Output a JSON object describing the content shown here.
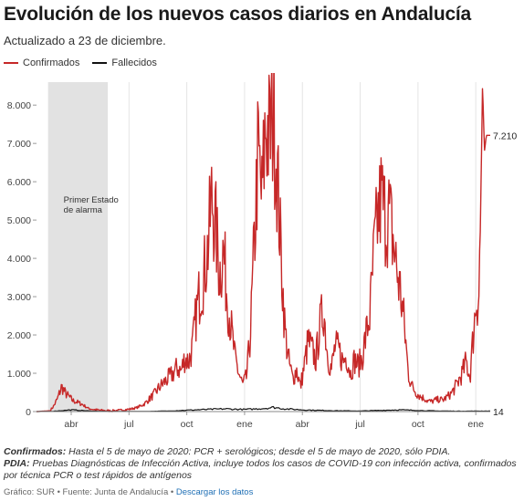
{
  "header": {
    "title": "Evolución de los nuevos casos diarios en Andalucía",
    "subtitle": "Actualizado a 23 de diciembre."
  },
  "notes": {
    "confirmed_label": "Confirmados:",
    "confirmed_text": "Hasta el 5 de mayo de 2020: PCR + serológicos; desde el 5 de mayo de 2020, sólo PDIA.",
    "pdia_label": "PDIA:",
    "pdia_text": "Pruebas Diagnósticas de Infección Activa, incluye todos los casos de COVID-19 con infección activa, confirmados por técnica PCR o test rápidos de antígenos"
  },
  "footer": {
    "credit": "Gráfico: SUR • Fuente: Junta de Andalucía •",
    "download_link": "Descargar los datos"
  },
  "chart_data": {
    "type": "line",
    "title": "Evolución de los nuevos casos diarios en Andalucía",
    "x_axis": {
      "ticks": [
        "abr",
        "jul",
        "oct",
        "ene",
        "abr",
        "jul",
        "oct",
        "ene"
      ],
      "tick_months": [
        2,
        5,
        8,
        11,
        14,
        17,
        20,
        23
      ],
      "range_months": [
        0.2,
        23.75
      ]
    },
    "y_axis": {
      "ticks": [
        "0",
        "1.000",
        "2.000",
        "3.000",
        "4.000",
        "5.000",
        "6.000",
        "7.000",
        "8.000"
      ],
      "tick_values": [
        0,
        1000,
        2000,
        3000,
        4000,
        5000,
        6000,
        7000,
        8000
      ],
      "range": [
        0,
        8600
      ]
    },
    "grid": "vertical",
    "legend_position": "top-left",
    "colors": {
      "confirmados": "#c62828",
      "fallecidos": "#111111",
      "shade": "#e2e2e2"
    },
    "annotation": {
      "text_line1": "Primer Estado",
      "text_line2": "de alarma",
      "x_start_month": 0.8,
      "x_end_month": 3.9
    },
    "last_values": {
      "confirmados": "7.210",
      "fallecidos": "14"
    },
    "series": [
      {
        "name": "Confirmados",
        "color": "#c62828",
        "x_months": [
          0.2,
          0.9,
          1.1,
          1.3,
          1.5,
          1.7,
          1.9,
          2.1,
          2.3,
          2.6,
          2.9,
          3.2,
          3.6,
          4.0,
          4.5,
          5.0,
          5.4,
          5.8,
          6.0,
          6.3,
          6.6,
          6.9,
          7.1,
          7.3,
          7.5,
          7.7,
          7.9,
          8.1,
          8.3,
          8.5,
          8.7,
          8.9,
          9.1,
          9.3,
          9.5,
          9.7,
          9.9,
          10.1,
          10.3,
          10.5,
          10.7,
          10.9,
          11.1,
          11.3,
          11.5,
          11.7,
          11.9,
          12.1,
          12.3,
          12.5,
          12.7,
          12.9,
          13.1,
          13.3,
          13.5,
          13.7,
          13.9,
          14.1,
          14.3,
          14.5,
          14.7,
          14.9,
          15.1,
          15.3,
          15.5,
          15.7,
          15.9,
          16.1,
          16.3,
          16.5,
          16.7,
          16.9,
          17.1,
          17.3,
          17.5,
          17.7,
          17.9,
          18.1,
          18.3,
          18.5,
          18.7,
          18.9,
          19.1,
          19.3,
          19.5,
          19.7,
          19.9,
          20.1,
          20.3,
          20.5,
          20.7,
          20.9,
          21.1,
          21.3,
          21.5,
          21.7,
          21.9,
          22.1,
          22.3,
          22.5,
          22.7,
          22.9,
          23.05,
          23.15,
          23.25,
          23.35,
          23.45,
          23.55,
          23.65,
          23.75
        ],
        "values": [
          0,
          20,
          150,
          350,
          650,
          480,
          380,
          280,
          250,
          180,
          80,
          50,
          30,
          20,
          30,
          60,
          100,
          200,
          300,
          450,
          650,
          800,
          900,
          1000,
          1150,
          1050,
          1400,
          1300,
          1700,
          2600,
          3200,
          3600,
          4300,
          5600,
          4800,
          3600,
          4200,
          3000,
          2200,
          1400,
          1000,
          700,
          900,
          2000,
          4300,
          6800,
          5500,
          7600,
          7100,
          7850,
          6200,
          4000,
          2100,
          1300,
          850,
          1100,
          650,
          1200,
          1850,
          1600,
          1350,
          2200,
          2700,
          1500,
          1100,
          1700,
          1600,
          1300,
          1450,
          1000,
          1350,
          1200,
          1400,
          2000,
          2500,
          4000,
          5000,
          5600,
          5100,
          5150,
          4500,
          3700,
          3100,
          2200,
          1000,
          650,
          500,
          400,
          350,
          280,
          260,
          300,
          320,
          300,
          380,
          460,
          600,
          800,
          1000,
          1300,
          900,
          2200,
          3000,
          2900,
          5000,
          8600,
          6800,
          7210,
          7210,
          7210
        ]
      },
      {
        "name": "Fallecidos",
        "color": "#111111",
        "x_months": [
          0.2,
          1.0,
          1.5,
          2.0,
          2.5,
          3.0,
          3.5,
          4.0,
          5.0,
          6.0,
          7.0,
          8.0,
          9.0,
          10.0,
          11.0,
          12.0,
          12.5,
          13.0,
          14.0,
          15.0,
          16.0,
          17.0,
          18.0,
          19.0,
          20.0,
          21.0,
          22.0,
          23.0,
          23.75
        ],
        "values": [
          0,
          5,
          25,
          45,
          30,
          15,
          8,
          3,
          2,
          5,
          15,
          35,
          55,
          70,
          55,
          80,
          110,
          75,
          45,
          30,
          20,
          15,
          30,
          45,
          30,
          15,
          10,
          12,
          14
        ]
      }
    ]
  }
}
